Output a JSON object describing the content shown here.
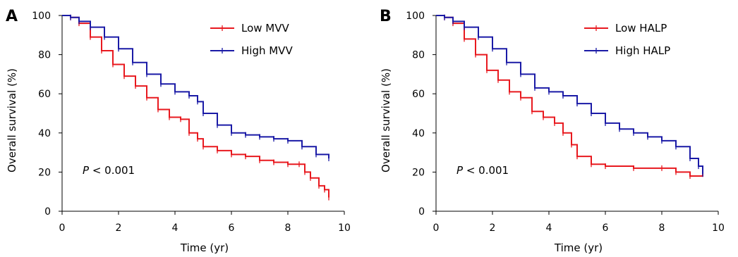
{
  "chart_data": [
    {
      "type": "line",
      "panel_label": "A",
      "xlabel": "Time (yr)",
      "ylabel": "Overall survival (%)",
      "xlim": [
        0,
        10
      ],
      "ylim": [
        0,
        100
      ],
      "xticks": [
        0,
        2,
        4,
        6,
        8,
        10
      ],
      "yticks": [
        0,
        20,
        40,
        60,
        80,
        100
      ],
      "annotation": {
        "italic": "P",
        "rest": " < 0.001"
      },
      "legend_position": "top-right",
      "series": [
        {
          "name": "Low MVV",
          "color": "#e8191f",
          "x": [
            0,
            0.3,
            0.6,
            1.0,
            1.4,
            1.8,
            2.2,
            2.6,
            3.0,
            3.4,
            3.8,
            4.2,
            4.5,
            4.8,
            5.0,
            5.5,
            6.0,
            6.5,
            7.0,
            7.5,
            8.0,
            8.4,
            8.6,
            8.8,
            9.1,
            9.3,
            9.45
          ],
          "y": [
            100,
            99,
            96,
            89,
            82,
            75,
            69,
            64,
            58,
            52,
            48,
            47,
            40,
            37,
            33,
            31,
            29,
            28,
            26,
            25,
            24,
            24,
            20,
            17,
            13,
            11,
            7
          ]
        },
        {
          "name": "High MVV",
          "color": "#1a1aa6",
          "x": [
            0,
            0.3,
            0.6,
            1.0,
            1.5,
            2.0,
            2.5,
            3.0,
            3.5,
            4.0,
            4.5,
            4.8,
            5.0,
            5.5,
            6.0,
            6.5,
            7.0,
            7.5,
            8.0,
            8.5,
            9.0,
            9.45
          ],
          "y": [
            100,
            99,
            97,
            94,
            89,
            83,
            76,
            70,
            65,
            61,
            59,
            56,
            50,
            44,
            40,
            39,
            38,
            37,
            36,
            33,
            29,
            27
          ]
        }
      ]
    },
    {
      "type": "line",
      "panel_label": "B",
      "xlabel": "Time (yr)",
      "ylabel": "Overall survival (%)",
      "xlim": [
        0,
        10
      ],
      "ylim": [
        0,
        100
      ],
      "xticks": [
        0,
        2,
        4,
        6,
        8,
        10
      ],
      "yticks": [
        0,
        20,
        40,
        60,
        80,
        100
      ],
      "annotation": {
        "italic": "P",
        "rest": " < 0.001"
      },
      "legend_position": "top-right",
      "series": [
        {
          "name": "Low HALP",
          "color": "#e8191f",
          "x": [
            0,
            0.3,
            0.6,
            1.0,
            1.4,
            1.8,
            2.2,
            2.6,
            3.0,
            3.4,
            3.8,
            4.2,
            4.5,
            4.8,
            5.0,
            5.5,
            6.0,
            7.0,
            8.0,
            8.5,
            9.0,
            9.45
          ],
          "y": [
            100,
            99,
            96,
            88,
            80,
            72,
            67,
            61,
            58,
            51,
            48,
            45,
            40,
            34,
            28,
            24,
            23,
            22,
            22,
            20,
            18,
            19
          ]
        },
        {
          "name": "High HALP",
          "color": "#1a1aa6",
          "x": [
            0,
            0.3,
            0.6,
            1.0,
            1.5,
            2.0,
            2.5,
            3.0,
            3.5,
            4.0,
            4.5,
            5.0,
            5.5,
            6.0,
            6.5,
            7.0,
            7.5,
            8.0,
            8.5,
            9.0,
            9.3,
            9.45
          ],
          "y": [
            100,
            99,
            97,
            94,
            89,
            83,
            76,
            70,
            63,
            61,
            59,
            55,
            50,
            45,
            42,
            40,
            38,
            36,
            33,
            27,
            23,
            19
          ]
        }
      ]
    }
  ]
}
